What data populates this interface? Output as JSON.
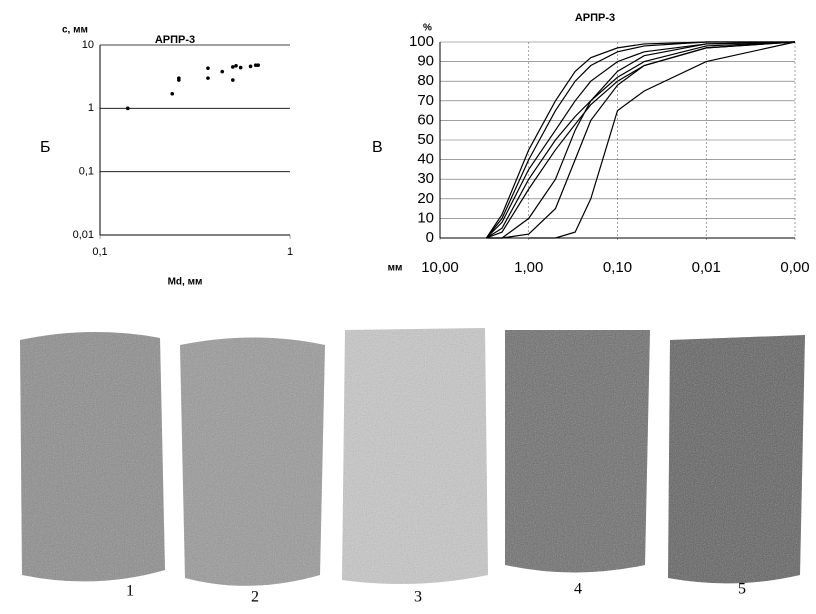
{
  "chart_data": [
    {
      "type": "scatter",
      "title": "АРПР-3",
      "y_label": "с, мм",
      "x_label": "Md, мм",
      "xscale": "log",
      "yscale": "log",
      "grid": true,
      "color": "#000000",
      "xlim": [
        0.1,
        1
      ],
      "ylim": [
        0.01,
        10
      ],
      "xticks": [
        {
          "value": 0.1,
          "label": "0,1"
        },
        1
      ],
      "yticks": [
        {
          "value": 0.01,
          "label": "0,01"
        },
        {
          "value": 0.1,
          "label": "0,1"
        },
        1,
        10
      ],
      "x": [
        0.14,
        0.24,
        0.26,
        0.26,
        0.37,
        0.37,
        0.44,
        0.5,
        0.5,
        0.52,
        0.55,
        0.62,
        0.66,
        0.68
      ],
      "values": [
        1.0,
        1.7,
        2.8,
        3.0,
        4.3,
        3.0,
        3.8,
        2.8,
        4.5,
        4.7,
        4.4,
        4.6,
        4.8,
        4.8
      ]
    },
    {
      "type": "line",
      "title": "АРПР-3",
      "y_label": "%",
      "x_label": "мм",
      "xscale": "log",
      "grid": true,
      "xlim": [
        10,
        0.001
      ],
      "ylim": [
        0,
        100
      ],
      "xticks": [
        {
          "value": 10,
          "label": "10,00"
        },
        {
          "value": 1,
          "label": "1,00"
        },
        {
          "value": 0.1,
          "label": "0,10"
        },
        {
          "value": 0.01,
          "label": "0,01"
        },
        {
          "value": 0.001,
          "label": "0,00"
        }
      ],
      "yticks": [
        0,
        10,
        20,
        30,
        40,
        50,
        60,
        70,
        80,
        90,
        100
      ],
      "x": [
        3,
        2,
        1,
        0.5,
        0.3,
        0.2,
        0.1,
        0.05,
        0.01,
        0.001
      ],
      "series": [
        {
          "color": "#000000",
          "values": [
            0,
            10,
            40,
            65,
            80,
            88,
            95,
            98,
            100,
            100
          ]
        },
        {
          "color": "#000000",
          "values": [
            0,
            8,
            35,
            55,
            70,
            80,
            90,
            95,
            99,
            100
          ]
        },
        {
          "color": "#000000",
          "values": [
            0,
            5,
            30,
            50,
            62,
            70,
            82,
            90,
            98,
            100
          ]
        },
        {
          "color": "#000000",
          "values": [
            0,
            3,
            25,
            45,
            58,
            68,
            80,
            88,
            97,
            100
          ]
        },
        {
          "color": "#000000",
          "values": [
            0,
            12,
            45,
            70,
            85,
            92,
            97,
            99,
            100,
            100
          ]
        },
        {
          "color": "#000000",
          "values": [
            0,
            0,
            10,
            30,
            55,
            70,
            85,
            93,
            99,
            100
          ]
        },
        {
          "color": "#000000",
          "values": [
            0,
            0,
            2,
            15,
            40,
            60,
            78,
            88,
            97,
            100
          ]
        },
        {
          "color": "#000000",
          "values": [
            null,
            null,
            0,
            0,
            3,
            20,
            65,
            75,
            90,
            100
          ]
        }
      ]
    }
  ],
  "panels": [
    "Б",
    "В"
  ],
  "photos": {
    "labels": [
      "1",
      "2",
      "3",
      "4",
      "5"
    ]
  }
}
